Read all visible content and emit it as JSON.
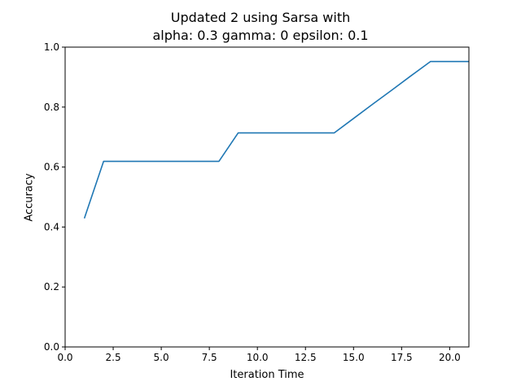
{
  "chart_data": {
    "type": "line",
    "title_line1": "Updated 2 using Sarsa with",
    "title_line2": "alpha: 0.3 gamma: 0 epsilon: 0.1",
    "xlabel": "Iteration Time",
    "ylabel": "Accuracy",
    "xlim": [
      0,
      21
    ],
    "ylim": [
      0,
      1.0
    ],
    "x_ticks": [
      0,
      2.5,
      5,
      7.5,
      10,
      12.5,
      15,
      17.5,
      20
    ],
    "x_tick_labels": [
      "0.0",
      "2.5",
      "5.0",
      "7.5",
      "10.0",
      "12.5",
      "15.0",
      "17.5",
      "20.0"
    ],
    "y_ticks": [
      0,
      0.2,
      0.4,
      0.6,
      0.8,
      1.0
    ],
    "y_tick_labels": [
      "0.0",
      "0.2",
      "0.4",
      "0.6",
      "0.8",
      "1.0"
    ],
    "grid": false,
    "line_color": "#1f77b4",
    "series": [
      {
        "x": [
          1,
          2,
          3,
          4,
          5,
          6,
          7,
          8,
          9,
          10,
          11,
          12,
          13,
          14,
          15,
          16,
          17,
          18,
          19,
          20,
          21
        ],
        "y": [
          0.429,
          0.619,
          0.619,
          0.619,
          0.619,
          0.619,
          0.619,
          0.619,
          0.714,
          0.714,
          0.714,
          0.714,
          0.714,
          0.714,
          0.762,
          0.81,
          0.857,
          0.905,
          0.952,
          0.952,
          0.952
        ]
      }
    ]
  }
}
